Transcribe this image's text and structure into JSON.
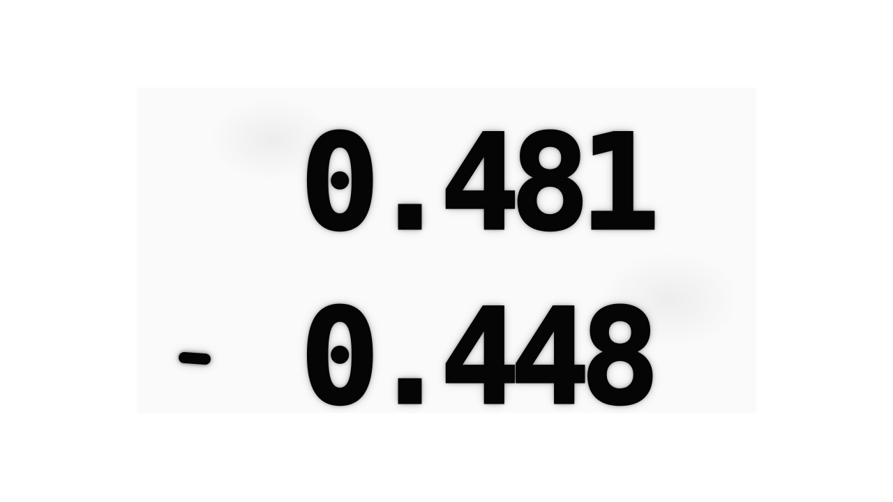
{
  "problem": {
    "minuend": "0.481",
    "operator": "-",
    "subtrahend": "0.448"
  },
  "colors": {
    "ink": "#050505",
    "paper": "#fafafa",
    "background": "#ffffff"
  }
}
